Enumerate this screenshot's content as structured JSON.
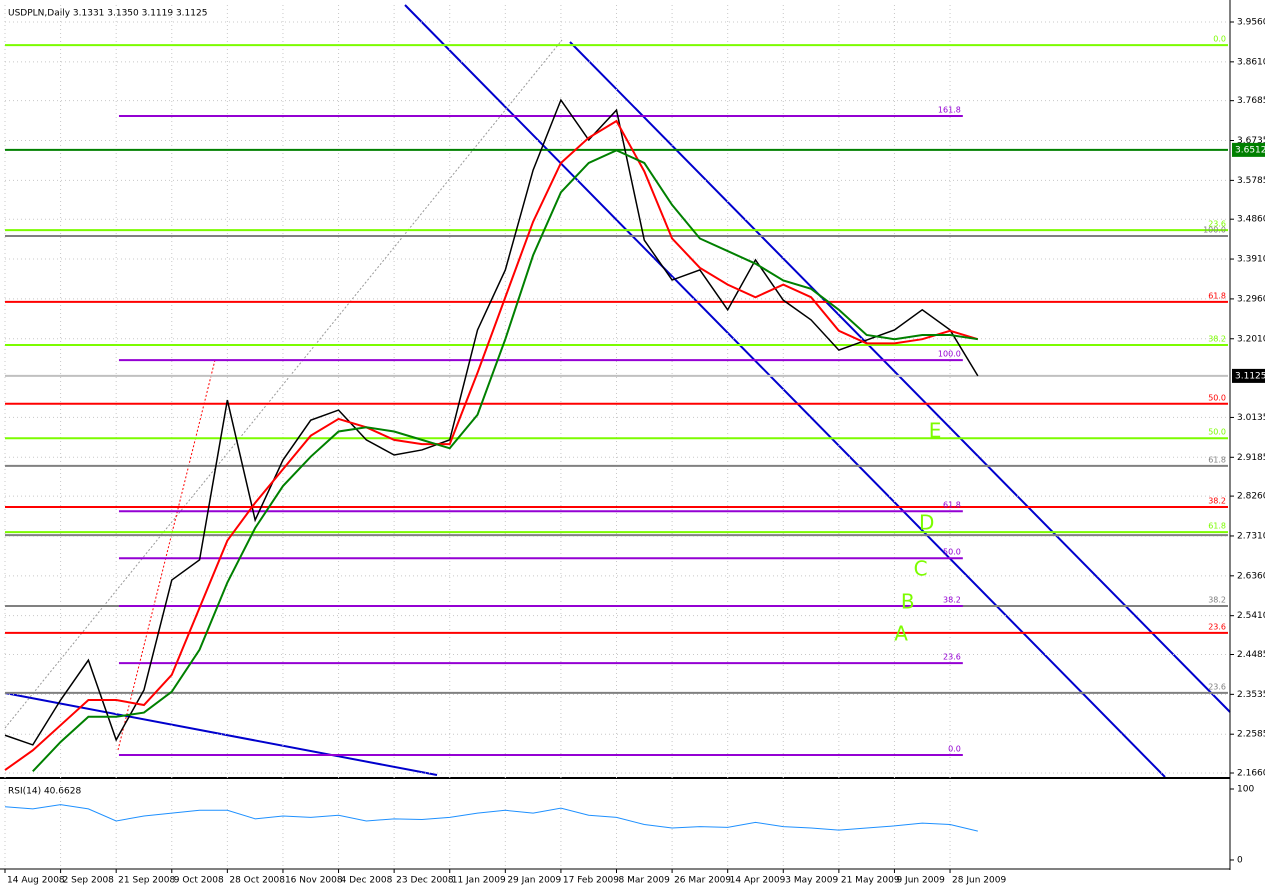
{
  "chart_data": [
    {
      "type": "line",
      "title": "USDPLN,Daily  3.1331 3.1350 3.1119 3.1125",
      "x": [
        0,
        0.5,
        1,
        1.5,
        2,
        2.5,
        3,
        3.5,
        4,
        4.5,
        5,
        5.5,
        6,
        6.5,
        7,
        7.5,
        8,
        8.5,
        9,
        9.5,
        10,
        10.5,
        11,
        11.5,
        12,
        12.5,
        13,
        13.5,
        14,
        14.5,
        15,
        15.5,
        16,
        16.5,
        17,
        17.5
      ],
      "series": [
        {
          "color": "#000000",
          "values": [
            2.256,
            2.233,
            2.34,
            2.435,
            2.245,
            2.364,
            2.626,
            2.674,
            3.055,
            2.769,
            2.912,
            3.007,
            3.031,
            2.96,
            2.924,
            2.936,
            2.96,
            3.222,
            3.365,
            3.603,
            3.77,
            3.675,
            3.746,
            3.436,
            3.341,
            3.365,
            3.27,
            3.389,
            3.293,
            3.246,
            3.174,
            3.198,
            3.222,
            3.27,
            3.222,
            3.1125
          ]
        },
        {
          "color": "#ff0000",
          "values": [
            2.173,
            2.22,
            2.28,
            2.34,
            2.34,
            2.328,
            2.4,
            2.56,
            2.72,
            2.81,
            2.89,
            2.97,
            3.01,
            2.99,
            2.96,
            2.95,
            2.95,
            3.12,
            3.3,
            3.48,
            3.62,
            3.68,
            3.72,
            3.6,
            3.44,
            3.37,
            3.33,
            3.3,
            3.33,
            3.3,
            3.22,
            3.19,
            3.19,
            3.2,
            3.22,
            3.2
          ]
        },
        {
          "color": "#008000",
          "values": [
            null,
            2.17,
            2.24,
            2.3,
            2.3,
            2.31,
            2.36,
            2.46,
            2.62,
            2.75,
            2.85,
            2.92,
            2.98,
            2.99,
            2.98,
            2.96,
            2.94,
            3.02,
            3.2,
            3.4,
            3.55,
            3.62,
            3.65,
            3.62,
            3.52,
            3.44,
            3.41,
            3.38,
            3.34,
            3.32,
            3.27,
            3.21,
            3.2,
            3.21,
            3.21,
            3.2
          ]
        }
      ],
      "xlim": [
        0,
        22
      ],
      "xticks": [
        {
          "value": 0,
          "label": "14 Aug 2008"
        },
        {
          "value": 1,
          "label": "2 Sep 2008"
        },
        {
          "value": 2,
          "label": "21 Sep 2008"
        },
        {
          "value": 3,
          "label": "9 Oct 2008"
        },
        {
          "value": 4,
          "label": "28 Oct 2008"
        },
        {
          "value": 5,
          "label": "16 Nov 2008"
        },
        {
          "value": 6,
          "label": "4 Dec 2008"
        },
        {
          "value": 7,
          "label": "23 Dec 2008"
        },
        {
          "value": 8,
          "label": "11 Jan 2009"
        },
        {
          "value": 9,
          "label": "29 Jan 2009"
        },
        {
          "value": 10,
          "label": "17 Feb 2009"
        },
        {
          "value": 11,
          "label": "8 Mar 2009"
        },
        {
          "value": 12,
          "label": "26 Mar 2009"
        },
        {
          "value": 13,
          "label": "14 Apr 2009"
        },
        {
          "value": 14,
          "label": "3 May 2009"
        },
        {
          "value": 15,
          "label": "21 May 2009"
        },
        {
          "value": 16,
          "label": "9 Jun 2009"
        },
        {
          "value": 17,
          "label": "28 Jun 2009"
        }
      ],
      "ylim": [
        2.1565,
        3.9965
      ],
      "yticks": [
        {
          "value": 3.956,
          "label": "3.9560"
        },
        {
          "value": 3.861,
          "label": "3.8610"
        },
        3.7685,
        3.6735,
        3.5785,
        {
          "value": 3.486,
          "label": "3.4860"
        },
        {
          "value": 3.391,
          "label": "3.3910"
        },
        {
          "value": 3.296,
          "label": "3.2960"
        },
        {
          "value": 3.201,
          "label": "3.2010"
        },
        3.0135,
        2.9185,
        {
          "value": 2.826,
          "label": "2.8260"
        },
        {
          "value": 2.731,
          "label": "2.7310"
        },
        {
          "value": 2.636,
          "label": "2.6360"
        },
        {
          "value": 2.541,
          "label": "2.5410"
        },
        2.4485,
        2.3535,
        2.2585,
        {
          "value": 2.166,
          "label": "2.1660"
        }
      ],
      "grid": true,
      "price_markers": [
        {
          "value": 3.6512,
          "color": "#008000"
        },
        {
          "value": 3.1125,
          "color": "#000000"
        }
      ],
      "levels": [
        {
          "value": 3.901,
          "label": "0.0",
          "color": "#7cfc00"
        },
        {
          "value": 3.732,
          "label": "161.8",
          "color": "#9400d3",
          "x": [
            2.05,
            17.23
          ]
        },
        {
          "value": 3.6512,
          "color": "#008000"
        },
        {
          "value": 3.46,
          "label": "23.6",
          "color": "#7cfc00"
        },
        {
          "value": 3.446,
          "label": "100.0",
          "color": "#808080"
        },
        {
          "value": 3.289,
          "label": "61.8",
          "color": "#ff0000"
        },
        {
          "value": 3.186,
          "label": "38.2",
          "color": "#7cfc00"
        },
        {
          "value": 3.15,
          "label": "100.0",
          "color": "#9400d3",
          "x": [
            2.05,
            17.23
          ]
        },
        {
          "value": 3.1125,
          "color": "#c0c0c0"
        },
        {
          "value": 3.046,
          "label": "50.0",
          "color": "#ff0000"
        },
        {
          "value": 2.964,
          "label": "50.0",
          "color": "#7cfc00"
        },
        {
          "value": 2.898,
          "label": "61.8",
          "color": "#808080"
        },
        {
          "value": 2.8,
          "label": "38.2",
          "color": "#ff0000"
        },
        {
          "value": 2.79,
          "label": "61.8",
          "color": "#9400d3",
          "x": [
            2.05,
            17.23
          ]
        },
        {
          "value": 2.74,
          "label": "61.8",
          "color": "#7cfc00"
        },
        {
          "value": 2.733,
          "color": "#808080"
        },
        {
          "value": 2.678,
          "label": "50.0",
          "color": "#9400d3",
          "x": [
            2.05,
            17.23
          ]
        },
        {
          "value": 2.564,
          "label": "38.2",
          "color": "#808080"
        },
        {
          "value": 2.564,
          "label": "38.2",
          "color": "#9400d3",
          "x": [
            2.05,
            17.23
          ]
        },
        {
          "value": 2.5,
          "label": "23.6",
          "color": "#ff0000"
        },
        {
          "value": 2.428,
          "label": "23.6",
          "color": "#9400d3",
          "x": [
            2.05,
            17.23
          ]
        },
        {
          "value": 2.357,
          "label": "23.6",
          "color": "#808080"
        },
        {
          "value": 2.209,
          "label": "0.0",
          "color": "#9400d3",
          "x": [
            2.05,
            17.23
          ]
        }
      ],
      "annotations": [
        {
          "text": "E",
          "x": 16.73,
          "y": 2.979
        },
        {
          "text": "D",
          "x": 16.58,
          "y": 2.76
        },
        {
          "text": "C",
          "x": 16.47,
          "y": 2.65
        },
        {
          "text": "B",
          "x": 16.24,
          "y": 2.571
        },
        {
          "text": "A",
          "x": 16.12,
          "y": 2.495
        }
      ],
      "annotation_color": "#7cfc00"
    },
    {
      "type": "line",
      "title": "RSI(14) 40.6628",
      "x": [
        0,
        0.5,
        1,
        1.5,
        2,
        2.5,
        3,
        3.5,
        4,
        4.5,
        5,
        5.5,
        6,
        6.5,
        7,
        7.5,
        8,
        8.5,
        9,
        9.5,
        10,
        10.5,
        11,
        11.5,
        12,
        12.5,
        13,
        13.5,
        14,
        14.5,
        15,
        15.5,
        16,
        16.5,
        17,
        17.5
      ],
      "series": [
        {
          "color": "#1e90ff",
          "values": [
            75,
            72,
            78,
            72,
            55,
            62,
            66,
            70,
            70,
            58,
            62,
            60,
            63,
            55,
            58,
            57,
            60,
            66,
            70,
            66,
            73,
            63,
            60,
            50,
            45,
            47,
            46,
            53,
            47,
            45,
            42,
            45,
            48,
            52,
            50,
            40.6628
          ]
        }
      ],
      "xlim": [
        0,
        22
      ],
      "ylim": [
        -11.3,
        114.1
      ],
      "yticks": [
        0,
        100
      ]
    }
  ]
}
